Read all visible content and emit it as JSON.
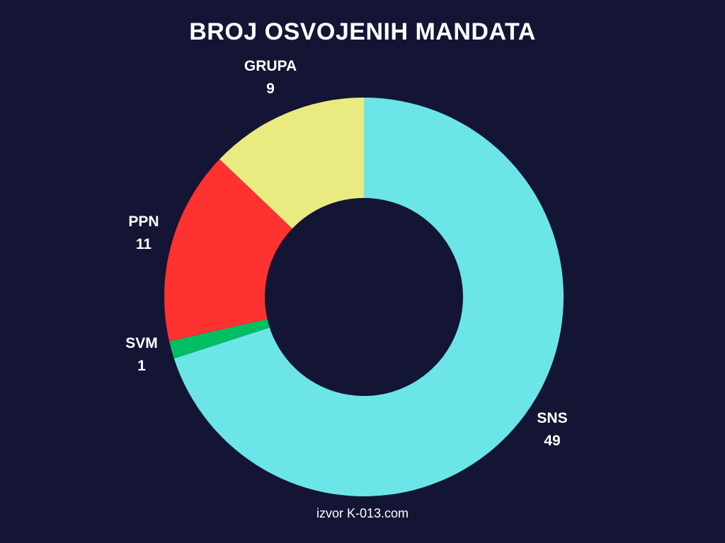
{
  "chart_data": {
    "type": "pie",
    "title": "BROJ OSVOJENIH MANDATA",
    "source": "izvor K-013.com",
    "legend": "none",
    "slices": [
      {
        "name": "SNS",
        "value": 49,
        "color": "#6be5e8"
      },
      {
        "name": "SVM",
        "value": 1,
        "color": "#00bf63"
      },
      {
        "name": "PPN",
        "value": 11,
        "color": "#ff3131"
      },
      {
        "name": "GRUPA",
        "value": 9,
        "color": "#e9eb80"
      }
    ]
  }
}
